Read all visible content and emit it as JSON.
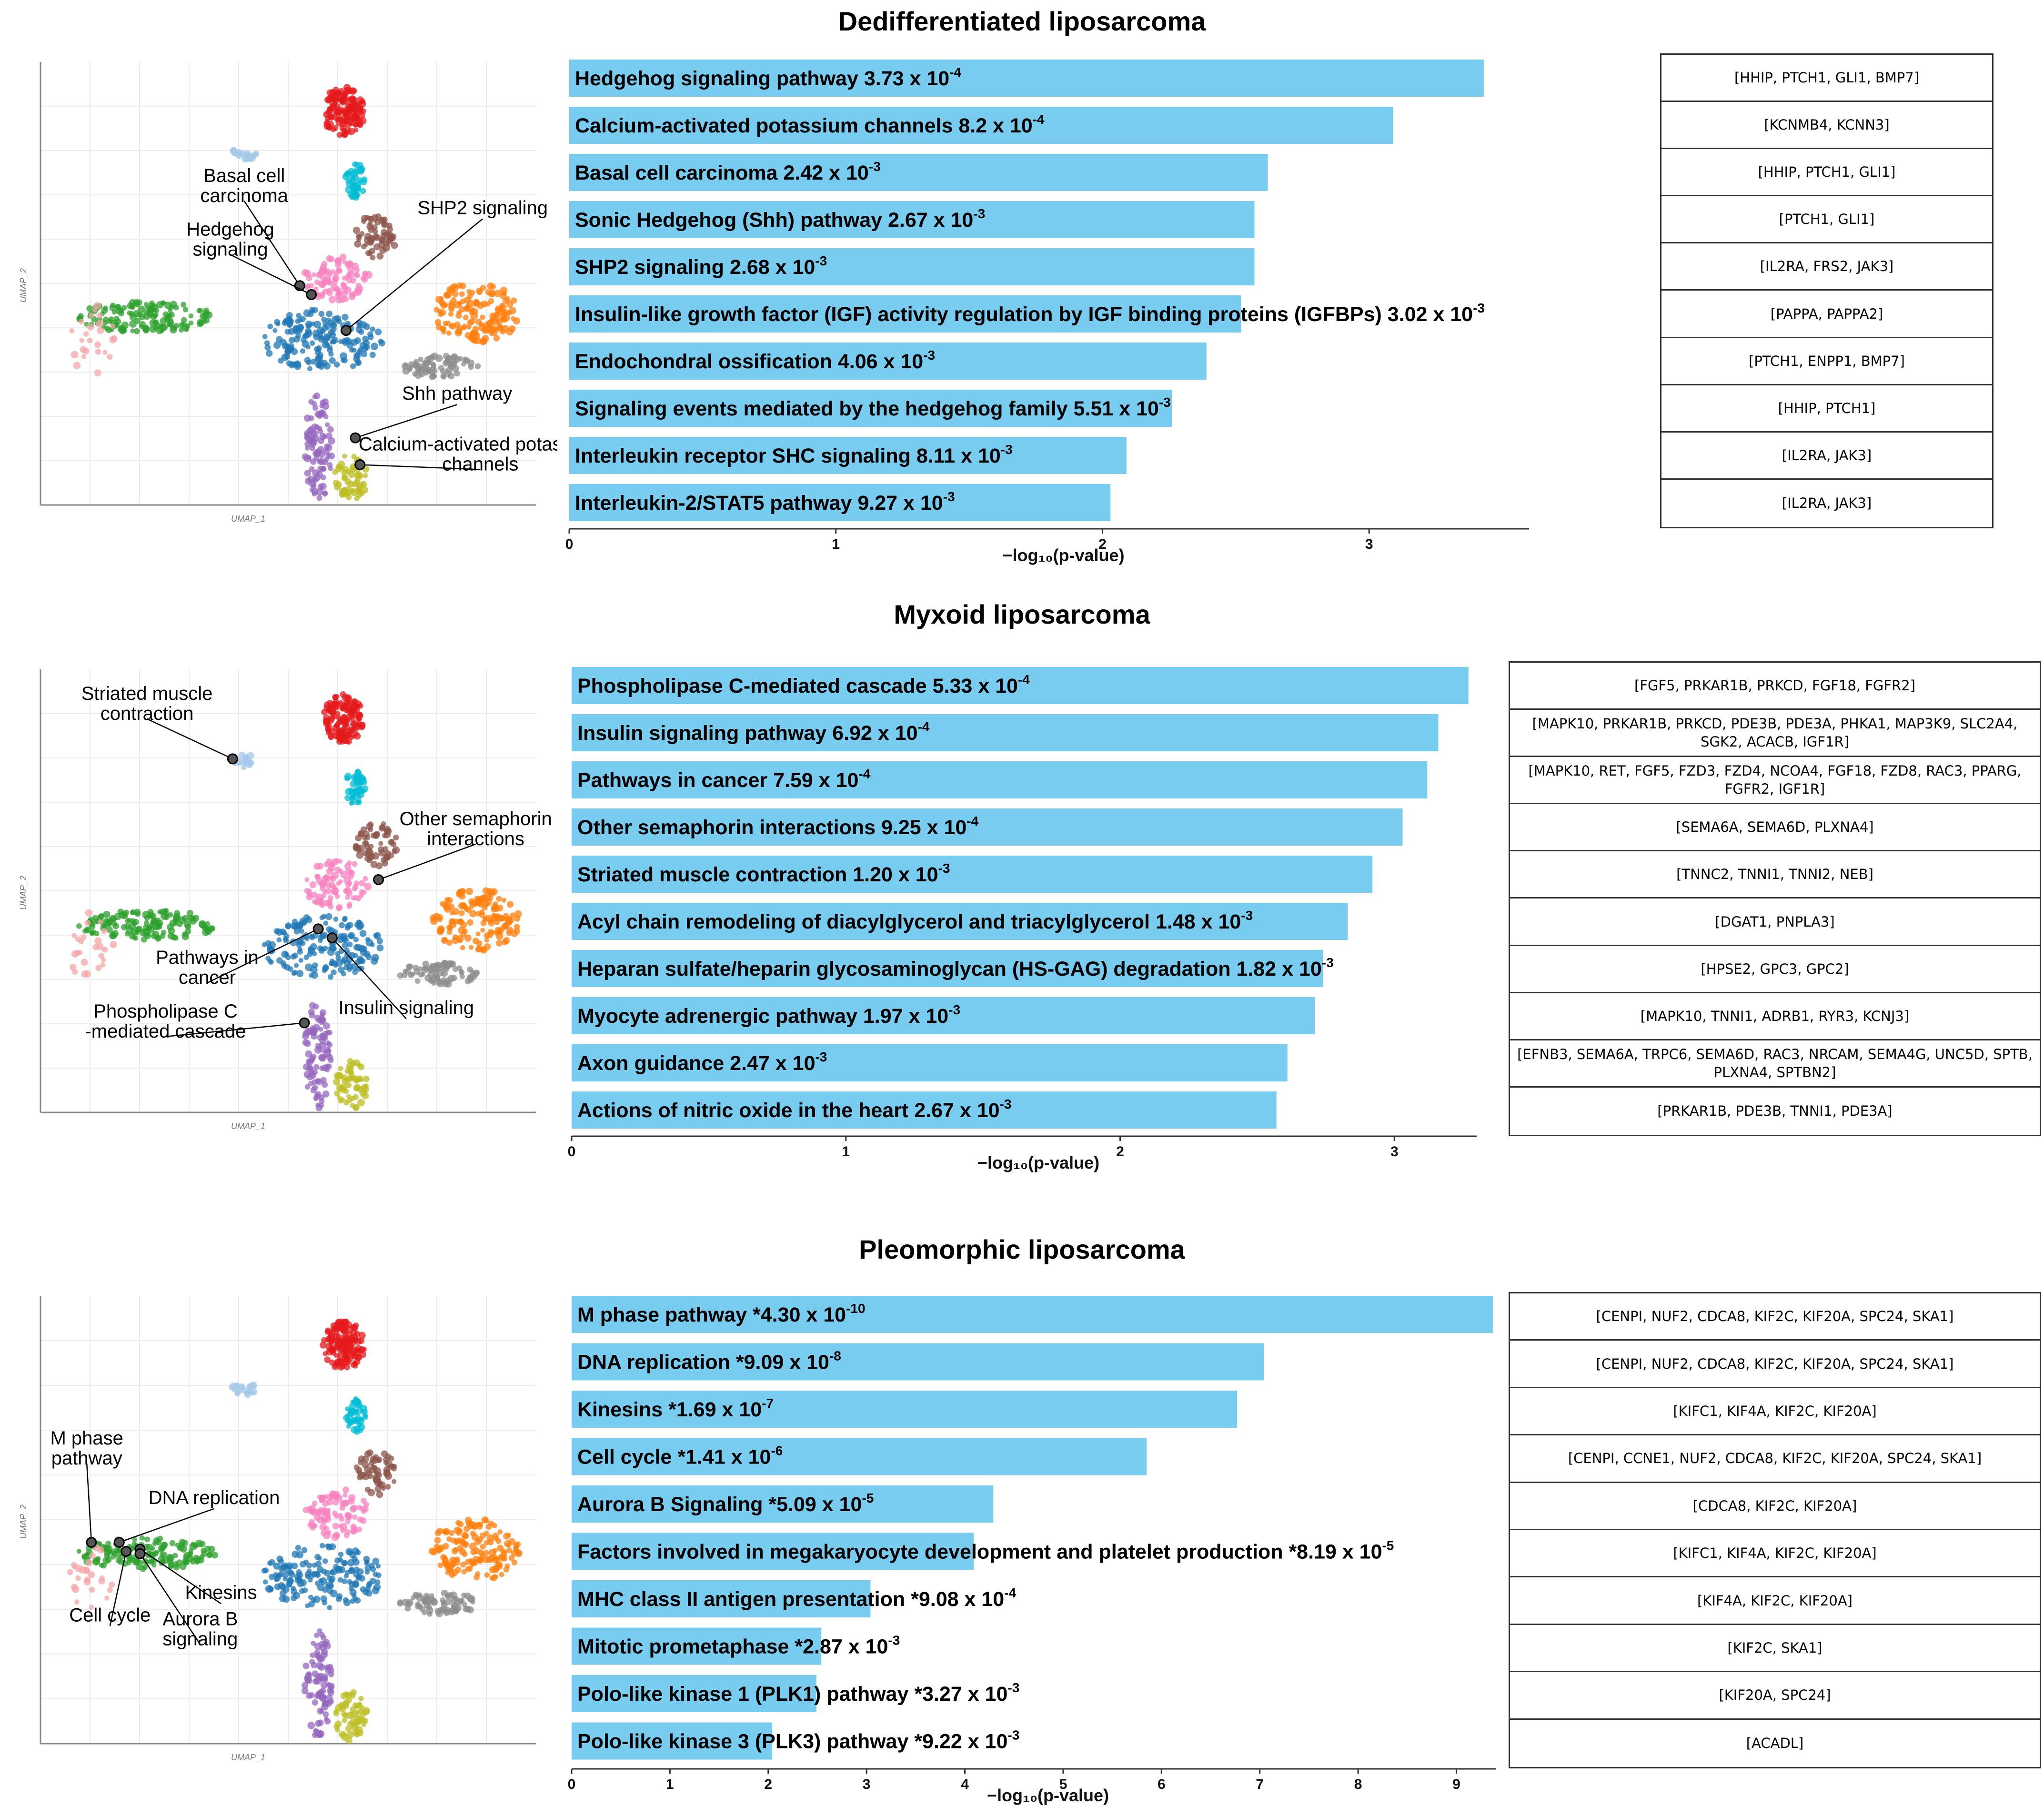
{
  "colors": {
    "bar": "#78ccef",
    "clusters": [
      "#e41a1c",
      "#00bcd4",
      "#a6c8e8",
      "#8c564b",
      "#f781bf",
      "#1f77b4",
      "#2ca02c",
      "#ff7f0e",
      "#8c8c8c",
      "#9467bd",
      "#bcbd22",
      "#f4a6a6"
    ]
  },
  "axis_label": "−log₁₀(p-value)",
  "umap_axes": {
    "x": "UMAP_1",
    "y": "UMAP_2"
  },
  "panels": [
    {
      "title": "Dedifferentiated liposarcoma",
      "umap_labels": [
        {
          "text": "Basal cell carcinoma"
        },
        {
          "text": "Hedgehog signaling"
        },
        {
          "text": "SHP2 signaling"
        },
        {
          "text": "Shh pathway"
        },
        {
          "text": "Calcium-activated potassium channels"
        }
      ],
      "genes": [
        "[HHIP, PTCH1, GLI1, BMP7]",
        "[KCNMB4, KCNN3]",
        "[HHIP, PTCH1, GLI1]",
        "[PTCH1, GLI1]",
        "[IL2RA, FRS2, JAK3]",
        "[PAPPA, PAPPA2]",
        "[PTCH1, ENPP1, BMP7]",
        "[HHIP, PTCH1]",
        "[IL2RA, JAK3]",
        "[IL2RA, JAK3]"
      ]
    },
    {
      "title": "Myxoid liposarcoma",
      "umap_labels": [
        {
          "text": "Striated muscle contraction"
        },
        {
          "text": "Other semaphorin interactions"
        },
        {
          "text": "Pathways in cancer"
        },
        {
          "text": "Insulin signaling"
        },
        {
          "text": "Phospholipase C -mediated cascade"
        }
      ],
      "genes": [
        "[FGF5, PRKAR1B, PRKCD, FGF18, FGFR2]",
        "[MAPK10, PRKAR1B, PRKCD, PDE3B, PDE3A, PHKA1, MAP3K9, SLC2A4, SGK2, ACACB, IGF1R]",
        "[MAPK10, RET, FGF5, FZD3, FZD4, NCOA4, FGF18, FZD8, RAC3, PPARG, FGFR2, IGF1R]",
        "[SEMA6A, SEMA6D, PLXNA4]",
        "[TNNC2, TNNI1, TNNI2, NEB]",
        "[DGAT1, PNPLA3]",
        "[HPSE2, GPC3, GPC2]",
        "[MAPK10, TNNI1, ADRB1, RYR3, KCNJ3]",
        "[EFNB3, SEMA6A, TRPC6, SEMA6D, RAC3, NRCAM, SEMA4G, UNC5D, SPTB, PLXNA4, SPTBN2]",
        "[PRKAR1B, PDE3B, TNNI1, PDE3A]"
      ]
    },
    {
      "title": "Pleomorphic liposarcoma",
      "umap_labels": [
        {
          "text": "M phase pathway"
        },
        {
          "text": "DNA replication"
        },
        {
          "text": "Kinesins"
        },
        {
          "text": "Cell cycle"
        },
        {
          "text": "Aurora B signaling"
        }
      ],
      "genes": [
        "[CENPI, NUF2, CDCA8, KIF2C, KIF20A, SPC24, SKA1]",
        "[CENPI, NUF2, CDCA8, KIF2C, KIF20A, SPC24, SKA1]",
        "[KIFC1, KIF4A, KIF2C, KIF20A]",
        "[CENPI, CCNE1, NUF2, CDCA8, KIF2C, KIF20A, SPC24, SKA1]",
        "[CDCA8, KIF2C, KIF20A]",
        "[KIFC1, KIF4A, KIF2C, KIF20A]",
        "[KIF4A, KIF2C, KIF20A]",
        "[KIF2C, SKA1]",
        "[KIF20A, SPC24]",
        "[ACADL]"
      ]
    }
  ],
  "chart_data": [
    {
      "type": "bar",
      "orientation": "horizontal",
      "title": "Dedifferentiated liposarcoma",
      "xlabel": "−log₁₀(p-value)",
      "xlim": [
        0,
        3.6
      ],
      "xticks": [
        0,
        1,
        2,
        3
      ],
      "categories": [
        "Hedgehog signaling pathway",
        "Calcium-activated potassium channels",
        "Basal cell carcinoma",
        "Sonic Hedgehog (Shh) pathway",
        "SHP2 signaling",
        "Insulin-like growth factor (IGF) activity regulation by IGF binding proteins (IGFBPs)",
        "Endochondral ossification",
        "Signaling events mediated by the hedgehog family",
        "Interleukin receptor SHC signaling",
        "Interleukin-2/STAT5 pathway"
      ],
      "pvalues": [
        {
          "mant": "3.73",
          "exp": "-4"
        },
        {
          "mant": "8.2",
          "exp": "-4"
        },
        {
          "mant": "2.42",
          "exp": "-3"
        },
        {
          "mant": "2.67",
          "exp": "-3"
        },
        {
          "mant": "2.68",
          "exp": "-3"
        },
        {
          "mant": "3.02",
          "exp": "-3"
        },
        {
          "mant": "4.06",
          "exp": "-3"
        },
        {
          "mant": "5.51",
          "exp": "-3"
        },
        {
          "mant": "8.11",
          "exp": "-3"
        },
        {
          "mant": "9.27",
          "exp": "-3"
        }
      ],
      "values": [
        3.43,
        3.09,
        2.62,
        2.57,
        2.57,
        2.52,
        2.39,
        2.26,
        2.09,
        2.03
      ]
    },
    {
      "type": "bar",
      "orientation": "horizontal",
      "title": "Myxoid liposarcoma",
      "xlabel": "−log₁₀(p-value)",
      "xlim": [
        0,
        3.3
      ],
      "xticks": [
        0,
        1,
        2,
        3
      ],
      "categories": [
        "Phospholipase C-mediated cascade",
        "Insulin signaling pathway",
        "Pathways in cancer",
        "Other semaphorin interactions",
        "Striated muscle contraction",
        "Acyl chain remodeling of diacylglycerol and triacylglycerol",
        "Heparan sulfate/heparin glycosaminoglycan (HS-GAG) degradation",
        "Myocyte adrenergic pathway",
        "Axon guidance",
        "Actions of nitric oxide in the heart"
      ],
      "pvalues": [
        {
          "mant": "5.33",
          "exp": "-4"
        },
        {
          "mant": "6.92",
          "exp": "-4"
        },
        {
          "mant": "7.59",
          "exp": "-4"
        },
        {
          "mant": "9.25",
          "exp": "-4"
        },
        {
          "mant": "1.20",
          "exp": "-3"
        },
        {
          "mant": "1.48",
          "exp": "-3"
        },
        {
          "mant": "1.82",
          "exp": "-3"
        },
        {
          "mant": "1.97",
          "exp": "-3"
        },
        {
          "mant": "2.47",
          "exp": "-3"
        },
        {
          "mant": "2.67",
          "exp": "-3"
        }
      ],
      "values": [
        3.27,
        3.16,
        3.12,
        3.03,
        2.92,
        2.83,
        2.74,
        2.71,
        2.61,
        2.57
      ]
    },
    {
      "type": "bar",
      "orientation": "horizontal",
      "title": "Pleomorphic liposarcoma",
      "xlabel": "−log₁₀(p-value)",
      "xlim": [
        0,
        9.4
      ],
      "xticks": [
        0,
        1,
        2,
        3,
        4,
        5,
        6,
        7,
        8,
        9
      ],
      "categories": [
        "M phase pathway",
        "DNA replication",
        "Kinesins",
        "Cell cycle",
        "Aurora B Signaling",
        "Factors involved in megakaryocyte development and platelet production",
        "MHC class II antigen presentation",
        "Mitotic prometaphase",
        "Polo-like kinase 1 (PLK1) pathway",
        "Polo-like kinase 3 (PLK3) pathway"
      ],
      "pvalues": [
        {
          "mant": "*4.30",
          "exp": "-10"
        },
        {
          "mant": "*9.09",
          "exp": "-8"
        },
        {
          "mant": "*1.69",
          "exp": "-7"
        },
        {
          "mant": "*1.41",
          "exp": "-6"
        },
        {
          "mant": "*5.09",
          "exp": "-5"
        },
        {
          "mant": "*8.19",
          "exp": "-5"
        },
        {
          "mant": "*9.08",
          "exp": "-4"
        },
        {
          "mant": "*2.87",
          "exp": "-3"
        },
        {
          "mant": "*3.27",
          "exp": "-3"
        },
        {
          "mant": "*9.22",
          "exp": "-3"
        }
      ],
      "values": [
        9.37,
        7.04,
        6.77,
        5.85,
        4.29,
        4.09,
        3.04,
        2.54,
        2.49,
        2.04
      ]
    }
  ]
}
